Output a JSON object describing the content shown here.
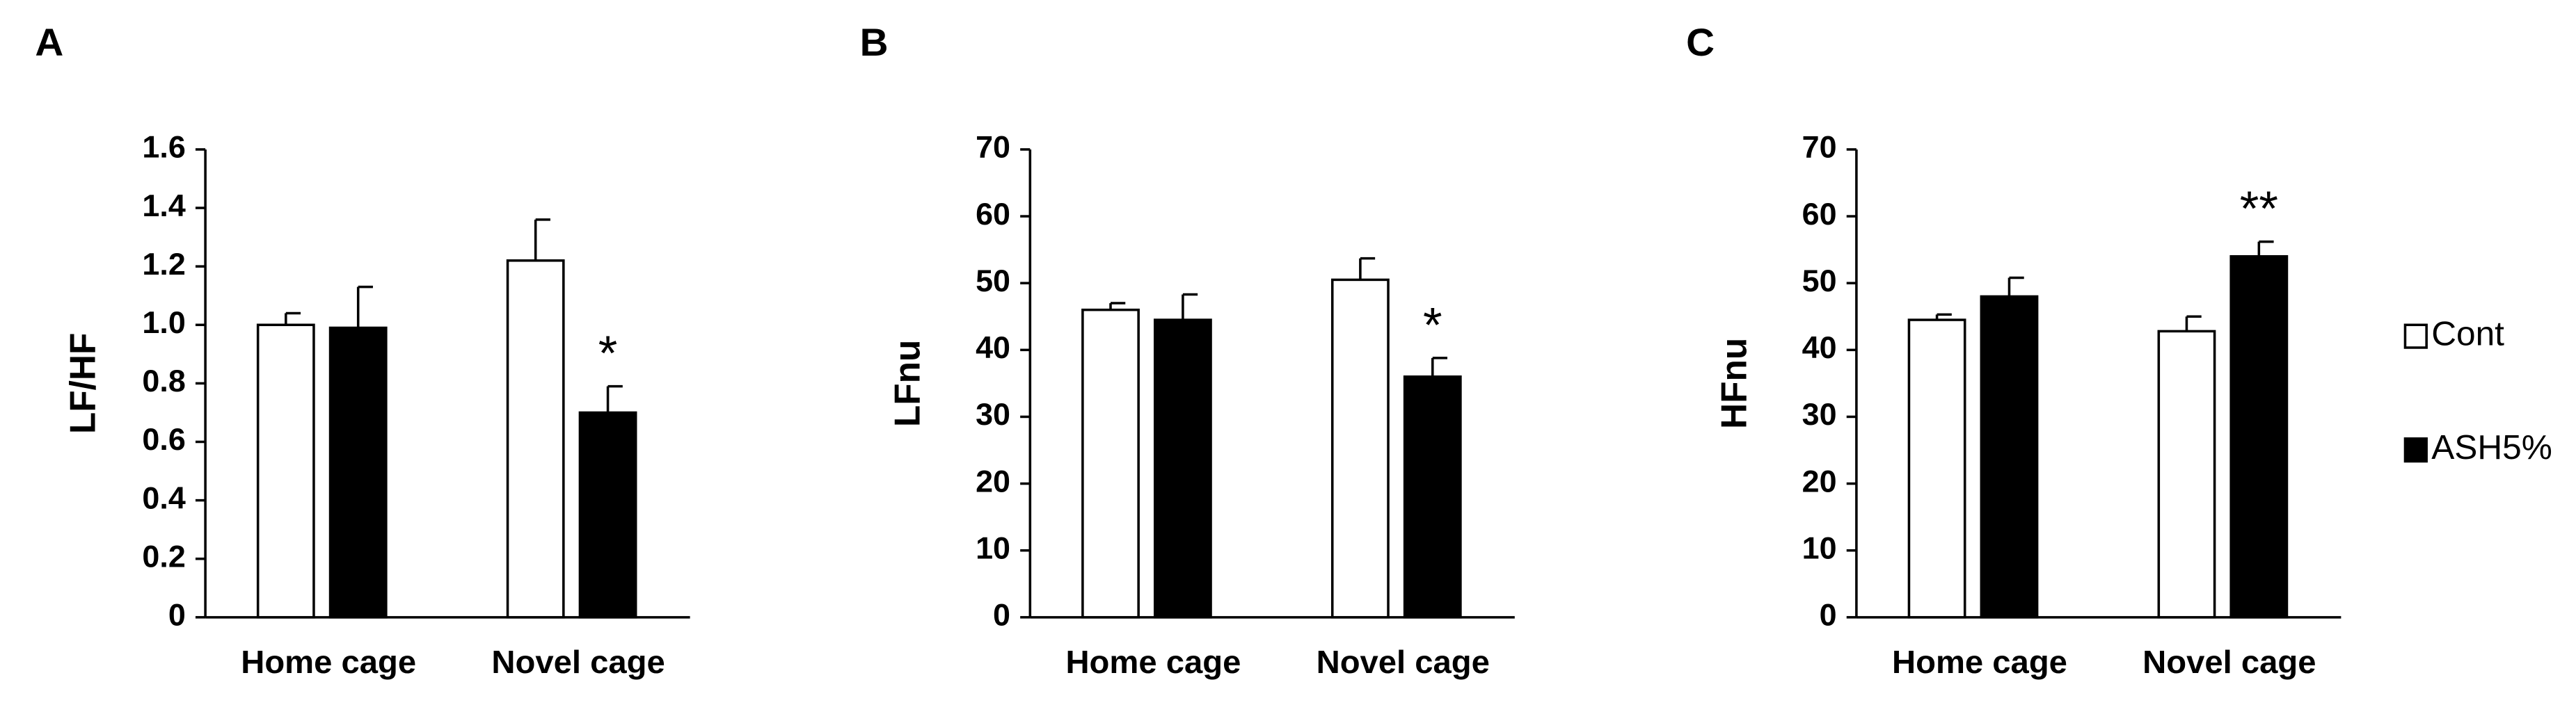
{
  "chart_data": [
    {
      "type": "bar",
      "panel": "A",
      "ylabel": "LF/HF",
      "categories": [
        "Home cage",
        "Novel cage"
      ],
      "series": [
        {
          "name": "Cont",
          "color": "#ffffff",
          "values": [
            1.0,
            1.22
          ],
          "errors": [
            0.04,
            0.14
          ]
        },
        {
          "name": "ASH5%",
          "color": "#000000",
          "values": [
            0.99,
            0.7
          ],
          "errors": [
            0.14,
            0.09
          ]
        }
      ],
      "annotation": "*",
      "ylim": [
        0,
        1.6
      ],
      "yticks": [
        0,
        0.2,
        0.4,
        0.6,
        0.8,
        {
          "value": 1,
          "label": "1.0"
        },
        1.2,
        1.4,
        1.6
      ]
    },
    {
      "type": "bar",
      "panel": "B",
      "ylabel": "LFnu",
      "categories": [
        "Home cage",
        "Novel cage"
      ],
      "series": [
        {
          "name": "Cont",
          "color": "#ffffff",
          "values": [
            46,
            50.5
          ],
          "errors": [
            1,
            3.2
          ]
        },
        {
          "name": "ASH5%",
          "color": "#000000",
          "values": [
            44.5,
            36
          ],
          "errors": [
            3.8,
            2.8
          ]
        }
      ],
      "annotation": "*",
      "ylim": [
        0,
        70
      ],
      "yticks": [
        0,
        10,
        20,
        30,
        40,
        50,
        60,
        70
      ]
    },
    {
      "type": "bar",
      "panel": "C",
      "ylabel": "HFnu",
      "categories": [
        "Home cage",
        "Novel cage"
      ],
      "series": [
        {
          "name": "Cont",
          "color": "#ffffff",
          "values": [
            44.5,
            42.8
          ],
          "errors": [
            0.8,
            2.2
          ]
        },
        {
          "name": "ASH5%",
          "color": "#000000",
          "values": [
            48,
            54
          ],
          "errors": [
            2.8,
            2.2
          ]
        }
      ],
      "annotation": "**",
      "ylim": [
        0,
        70
      ],
      "yticks": [
        0,
        10,
        20,
        30,
        40,
        50,
        60,
        70
      ]
    }
  ]
}
